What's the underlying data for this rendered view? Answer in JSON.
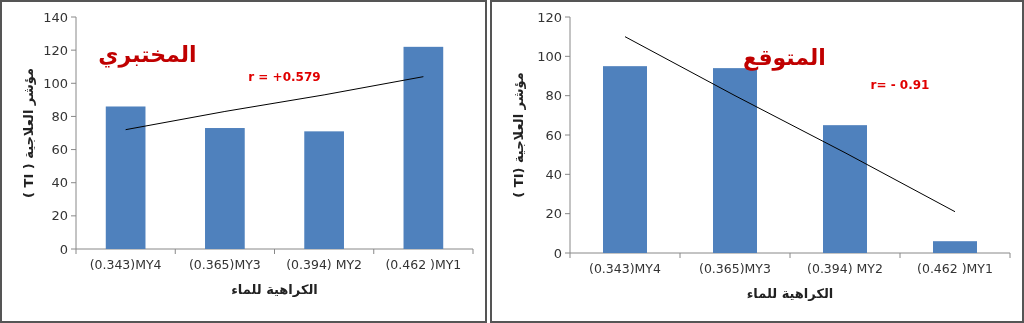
{
  "chart_data": [
    {
      "type": "bar",
      "title": "المختبري",
      "xlabel": "الكراهية للماء",
      "ylabel": "مؤشر  العلاجية ( TI )",
      "categories": [
        "(0.343)MY4",
        "(0.365)MY3",
        "(0.394) MY2",
        "(0.462 )MY1"
      ],
      "ylim": [
        0,
        140
      ],
      "yticks": [
        0,
        20,
        40,
        60,
        80,
        100,
        120,
        140
      ],
      "series": [
        {
          "color": "#4f81bd",
          "values": [
            86,
            73,
            71,
            122
          ]
        },
        {
          "type": "line",
          "color": "#000000",
          "values": [
            72,
            83,
            93,
            104
          ]
        }
      ],
      "annotations": [
        "r =  +0.579"
      ]
    },
    {
      "type": "bar",
      "title": "المتوقع",
      "xlabel": "الكراهية للماء",
      "ylabel": "مؤشر  العلاجية (TI )",
      "categories": [
        "(0.343)MY4",
        "(0.365)MY3",
        "(0.394) MY2",
        "(0.462 )MY1"
      ],
      "ylim": [
        0,
        120
      ],
      "yticks": [
        0,
        20,
        40,
        60,
        80,
        100,
        120
      ],
      "series": [
        {
          "color": "#4f81bd",
          "values": [
            95,
            94,
            65,
            6
          ]
        },
        {
          "type": "line",
          "color": "#000000",
          "values": [
            110,
            80,
            51,
            21
          ]
        }
      ],
      "annotations": [
        "r=  - 0.91"
      ]
    }
  ]
}
